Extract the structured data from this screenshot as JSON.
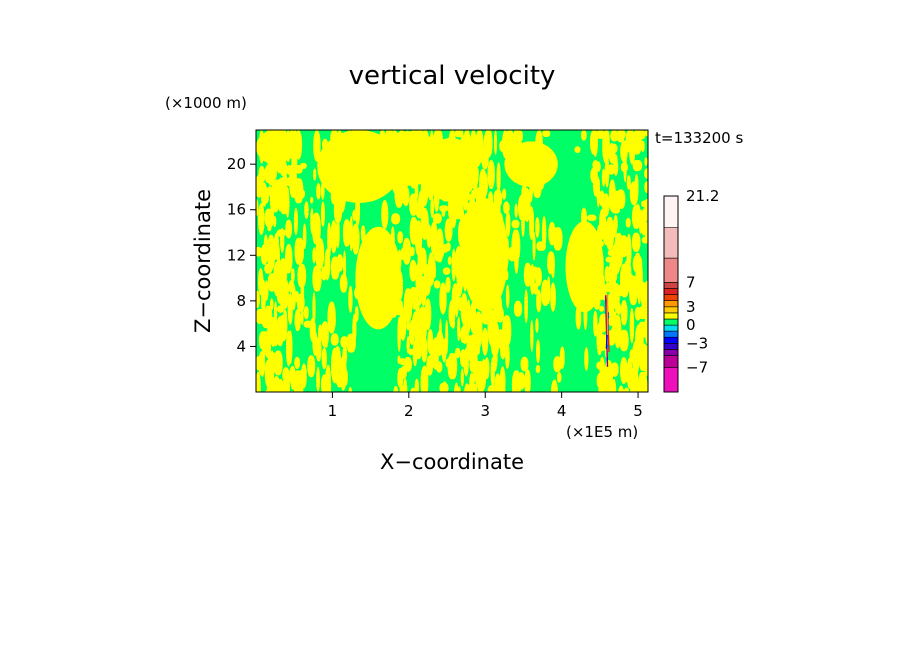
{
  "chart_data": {
    "type": "heatmap",
    "title": "vertical velocity",
    "time_label": "t=133200 s",
    "xlabel": "X−coordinate",
    "ylabel": "Z−coordinate",
    "x_unit": "(×1E5 m)",
    "y_unit": "(×1000 m)",
    "xlim": [
      0,
      5.13
    ],
    "ylim": [
      0,
      23
    ],
    "x_ticks": [
      "1",
      "2",
      "3",
      "4",
      "5"
    ],
    "y_ticks": [
      "4",
      "8",
      "12",
      "16",
      "20"
    ],
    "x_tick_values": [
      1,
      2,
      3,
      4,
      5
    ],
    "y_tick_values": [
      4,
      8,
      12,
      16,
      20
    ],
    "colorbar": {
      "labels": [
        "21.2",
        "7",
        "3",
        "0",
        "−3",
        "−7"
      ],
      "label_values": [
        21.2,
        7,
        3,
        0,
        -3,
        -7
      ],
      "bands": [
        {
          "from": -11,
          "to": -7,
          "color": "#ee11bb"
        },
        {
          "from": -7,
          "to": -5,
          "color": "#bb0099"
        },
        {
          "from": -5,
          "to": -4,
          "color": "#8800aa"
        },
        {
          "from": -4,
          "to": -3,
          "color": "#3300cc"
        },
        {
          "from": -3,
          "to": -2,
          "color": "#0000ff"
        },
        {
          "from": -2,
          "to": -1,
          "color": "#0077ff"
        },
        {
          "from": -1,
          "to": 0,
          "color": "#00ddee"
        },
        {
          "from": 0,
          "to": 1,
          "color": "#00ff66"
        },
        {
          "from": 1,
          "to": 2,
          "color": "#ffff00"
        },
        {
          "from": 2,
          "to": 3,
          "color": "#ffcc00"
        },
        {
          "from": 3,
          "to": 4,
          "color": "#ff9900"
        },
        {
          "from": 4,
          "to": 5,
          "color": "#ee4400"
        },
        {
          "from": 5,
          "to": 6,
          "color": "#dd2222"
        },
        {
          "from": 6,
          "to": 7,
          "color": "#cc4444"
        },
        {
          "from": 7,
          "to": 11,
          "color": "#ee8888"
        },
        {
          "from": 11,
          "to": 16,
          "color": "#f4bbbb"
        },
        {
          "from": 16,
          "to": 21.2,
          "color": "#fff4f4"
        }
      ]
    },
    "field_colors": {
      "low": "#00ff66",
      "high": "#ffff00"
    }
  }
}
